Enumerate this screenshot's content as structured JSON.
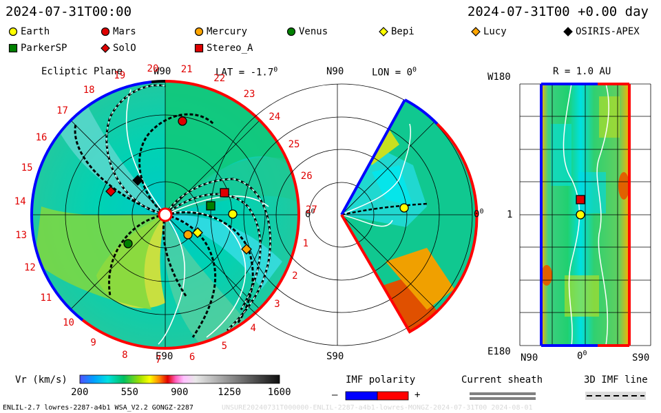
{
  "header": {
    "date_left": "2024-07-31T00:00",
    "date_right": "2024-07-31T00 +0.00 day"
  },
  "legend": [
    {
      "name": "Earth",
      "shape": "circle",
      "color": "#ffff00"
    },
    {
      "name": "Mars",
      "shape": "circle",
      "color": "#e00000"
    },
    {
      "name": "Mercury",
      "shape": "circle",
      "color": "#ffa500"
    },
    {
      "name": "Venus",
      "shape": "circle",
      "color": "#008000"
    },
    {
      "name": "Bepi",
      "shape": "diamond",
      "color": "#ffff00"
    },
    {
      "name": "Lucy",
      "shape": "diamond",
      "color": "#ffa500"
    },
    {
      "name": "OSIRIS-APEX",
      "shape": "diamond",
      "color": "#000000"
    },
    {
      "name": "ParkerSP",
      "shape": "square",
      "color": "#008000"
    },
    {
      "name": "SolO",
      "shape": "diamond",
      "color": "#e00000"
    },
    {
      "name": "Stereo_A",
      "shape": "square",
      "color": "#e00000"
    }
  ],
  "panel_ecliptic": {
    "title": "Ecliptic Plane",
    "top_label": "W90",
    "lat_label": "LAT = -1.7",
    "degree_mark": "0",
    "right_label": "0",
    "bottom_label": "E90",
    "carrington_numbers": [
      "20",
      "21",
      "22",
      "23",
      "24",
      "25",
      "26",
      "27",
      "1",
      "2",
      "3",
      "4",
      "5",
      "6",
      "7",
      "8",
      "9",
      "10",
      "11",
      "12",
      "13",
      "14",
      "15",
      "16",
      "17",
      "18",
      "19"
    ]
  },
  "panel_meridional": {
    "top_label": "N90",
    "lon_label": "LON = 0",
    "degree_mark": "0",
    "right_label": "0",
    "bottom_label": "S90"
  },
  "panel_map": {
    "title": "R = 1.0 AU",
    "top_left_label": "W180",
    "middle_left_label": "1",
    "bottom_left_label": "E180",
    "x_left_label": "N90",
    "x_mid_label": "0",
    "x_right_label": "S90"
  },
  "colorbar": {
    "label": "Vr (km/s)",
    "ticks": [
      "200",
      "550",
      "900",
      "1250",
      "1600"
    ]
  },
  "imf_polarity": {
    "label": "IMF polarity",
    "minus": "–",
    "plus": "+",
    "negative_color": "#0000ff",
    "positive_color": "#ff0000"
  },
  "current_sheath": {
    "label": "Current sheath"
  },
  "imf_line": {
    "label": "3D IMF line"
  },
  "footer": {
    "left": "ENLIL-2.7 lowres-2287-a4b1 WSA_V2.2 GONGZ-2287",
    "right": "UNSURE20240731T000000-ENLIL-2287-a4b1-lowres-MONGZ-2024-07-31T00  2024-08-01"
  }
}
